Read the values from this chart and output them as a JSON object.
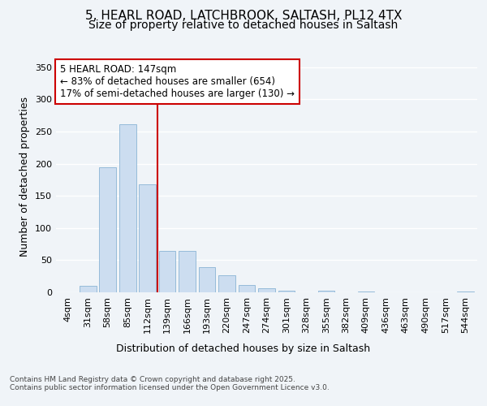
{
  "title_line1": "5, HEARL ROAD, LATCHBROOK, SALTASH, PL12 4TX",
  "title_line2": "Size of property relative to detached houses in Saltash",
  "xlabel": "Distribution of detached houses by size in Saltash",
  "ylabel": "Number of detached properties",
  "categories": [
    "4sqm",
    "31sqm",
    "58sqm",
    "85sqm",
    "112sqm",
    "139sqm",
    "166sqm",
    "193sqm",
    "220sqm",
    "247sqm",
    "274sqm",
    "301sqm",
    "328sqm",
    "355sqm",
    "382sqm",
    "409sqm",
    "436sqm",
    "463sqm",
    "490sqm",
    "517sqm",
    "544sqm"
  ],
  "values": [
    0,
    10,
    195,
    262,
    168,
    65,
    65,
    39,
    27,
    12,
    6,
    2,
    0,
    3,
    0,
    1,
    0,
    0,
    0,
    0,
    1
  ],
  "bar_color": "#ccddf0",
  "bar_edge_color": "#8ab4d4",
  "vline_index": 5,
  "vline_color": "#cc0000",
  "annotation_text_line1": "5 HEARL ROAD: 147sqm",
  "annotation_text_line2": "← 83% of detached houses are smaller (654)",
  "annotation_text_line3": "17% of semi-detached houses are larger (130) →",
  "ylim": [
    0,
    360
  ],
  "yticks": [
    0,
    50,
    100,
    150,
    200,
    250,
    300,
    350
  ],
  "footer_line1": "Contains HM Land Registry data © Crown copyright and database right 2025.",
  "footer_line2": "Contains public sector information licensed under the Open Government Licence v3.0.",
  "background_color": "#f0f4f8",
  "grid_color": "#ffffff",
  "title1_fontsize": 11,
  "title2_fontsize": 10,
  "axis_label_fontsize": 9,
  "tick_fontsize": 8,
  "annotation_fontsize": 8.5,
  "footer_fontsize": 6.5
}
